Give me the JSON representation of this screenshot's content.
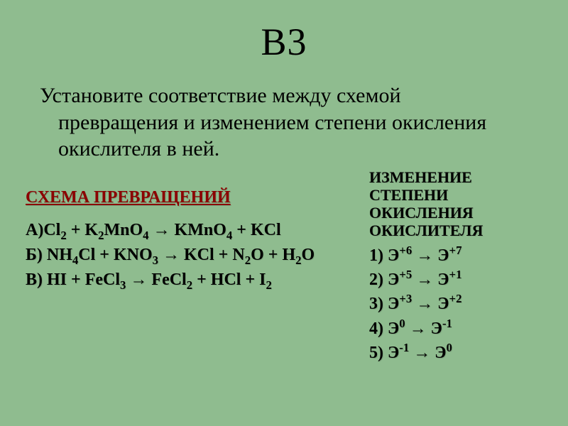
{
  "background_color": "#8fbc8f",
  "title": "В3",
  "prompt": "Установите соответствие между схемой превращения и изменением степени окисления окислителя в ней.",
  "left": {
    "header": "СХЕМА ПРЕВРАЩЕНИЙ",
    "header_color": "#8b0000",
    "eq_a_label": "А)",
    "eq_b_label": "Б) ",
    "eq_c_label": "В) ",
    "arrow": "→",
    "plus": " + ",
    "tokens": {
      "Cl": "Cl",
      "K": "K",
      "MnO": "MnO",
      "KMnO": "KMnO",
      "KCl": "KCl",
      "NH": "NH",
      "KNO": "KNO",
      "N": "N",
      "O": "O",
      "H": "H",
      "HI": "HI",
      "FeCl": "FeCl",
      "HCl": "HCl",
      "I": "I",
      "s2": "2",
      "s3": "3",
      "s4": "4"
    }
  },
  "right": {
    "header_l1": "ИЗМЕНЕНИЕ",
    "header_l2": "СТЕПЕНИ",
    "header_l3": "ОКИСЛЕНИЯ",
    "header_l4": "ОКИСЛИТЕЛЯ",
    "E": "Э",
    "arrow": "→",
    "items": [
      {
        "n": "1) ",
        "from": "+6",
        "to": "+7"
      },
      {
        "n": "2) ",
        "from": "+5",
        "to": "+1"
      },
      {
        "n": "3) ",
        "from": "+3",
        "to": "+2"
      },
      {
        "n": "4) ",
        "from": "0",
        "to": "-1"
      },
      {
        "n": "5) ",
        "from": "-1",
        "to": "0"
      }
    ]
  },
  "typography": {
    "title_fontsize": 54,
    "body_fontsize": 30,
    "bold_fontsize": 24,
    "font_family": "Times New Roman"
  }
}
